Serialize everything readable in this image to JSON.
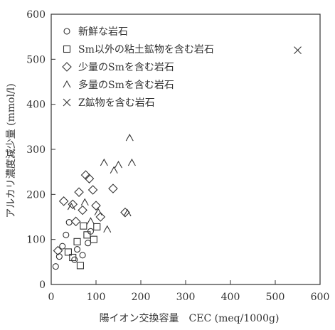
{
  "chart_data": {
    "type": "scatter",
    "xlabel": "陽イオン交換容量　CEC (meq/1000g)",
    "ylabel": "アルカリ濃度減少量 (mmol/l)",
    "xlim": [
      0,
      600
    ],
    "ylim": [
      0,
      600
    ],
    "xticks": [
      0,
      100,
      200,
      300,
      400,
      500,
      600
    ],
    "yticks": [
      0,
      100,
      200,
      300,
      400,
      500,
      600
    ],
    "grid": false,
    "legend_position": "top-left",
    "colors": {
      "ink": "#333333",
      "background": "#ffffff"
    },
    "series": [
      {
        "name": "新鮮な岩石",
        "marker": "circle",
        "points": [
          [
            10,
            40
          ],
          [
            18,
            62
          ],
          [
            25,
            85
          ],
          [
            33,
            110
          ],
          [
            40,
            138
          ],
          [
            52,
            55
          ],
          [
            58,
            78
          ],
          [
            70,
            65
          ],
          [
            82,
            92
          ],
          [
            88,
            118
          ]
        ]
      },
      {
        "name": "Sm以外の粘土鉱物を含む岩石",
        "marker": "square",
        "points": [
          [
            38,
            72
          ],
          [
            48,
            60
          ],
          [
            58,
            95
          ],
          [
            65,
            42
          ],
          [
            72,
            130
          ],
          [
            80,
            110
          ],
          [
            95,
            100
          ],
          [
            102,
            128
          ]
        ]
      },
      {
        "name": "少量のSmを含む岩石",
        "marker": "diamond",
        "points": [
          [
            15,
            75
          ],
          [
            28,
            185
          ],
          [
            48,
            178
          ],
          [
            55,
            140
          ],
          [
            62,
            205
          ],
          [
            70,
            165
          ],
          [
            77,
            243
          ],
          [
            85,
            235
          ],
          [
            93,
            210
          ],
          [
            100,
            175
          ],
          [
            110,
            150
          ],
          [
            138,
            213
          ],
          [
            165,
            160
          ]
        ]
      },
      {
        "name": "多量のSmを含む岩石",
        "marker": "triangle",
        "points": [
          [
            45,
            172
          ],
          [
            75,
            182
          ],
          [
            88,
            140
          ],
          [
            105,
            160
          ],
          [
            118,
            270
          ],
          [
            125,
            122
          ],
          [
            140,
            253
          ],
          [
            150,
            265
          ],
          [
            170,
            158
          ],
          [
            175,
            325
          ],
          [
            180,
            270
          ]
        ]
      },
      {
        "name": "Z鉱物を含む岩石",
        "marker": "cross",
        "points": [
          [
            550,
            520
          ]
        ]
      }
    ]
  }
}
